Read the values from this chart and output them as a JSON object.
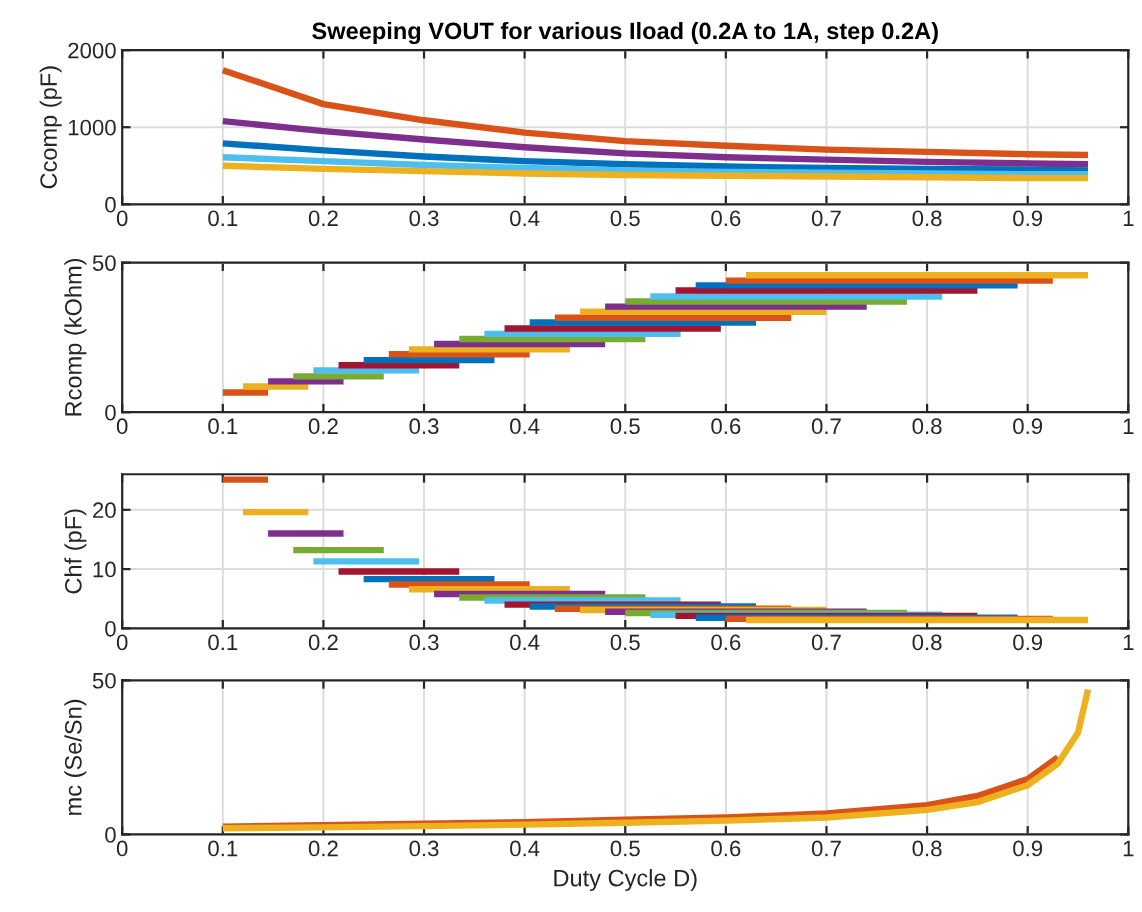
{
  "chart_data": [
    {
      "type": "line",
      "title": "Sweeping VOUT for various Iload (0.2A to 1A, step 0.2A)",
      "ylabel": "Ccomp (pF)",
      "xlim": [
        0,
        1
      ],
      "xticks": [
        0,
        0.1,
        0.2,
        0.3,
        0.4,
        0.5,
        0.6,
        0.7,
        0.8,
        0.9,
        1
      ],
      "ylim": [
        0,
        2000
      ],
      "yticks": [
        0,
        1000,
        2000
      ],
      "grid": true,
      "legend": false,
      "series": [
        {
          "color": "#d95319",
          "x": [
            0.1,
            0.2,
            0.3,
            0.4,
            0.5,
            0.6,
            0.7,
            0.8,
            0.9,
            0.96
          ],
          "values": [
            1740,
            1300,
            1090,
            930,
            820,
            760,
            710,
            680,
            650,
            640
          ]
        },
        {
          "color": "#7e2f8e",
          "x": [
            0.1,
            0.2,
            0.3,
            0.4,
            0.5,
            0.6,
            0.7,
            0.8,
            0.9,
            0.96
          ],
          "values": [
            1080,
            950,
            840,
            740,
            660,
            610,
            580,
            550,
            530,
            520
          ]
        },
        {
          "color": "#0072bd",
          "x": [
            0.1,
            0.2,
            0.3,
            0.4,
            0.5,
            0.6,
            0.7,
            0.8,
            0.9,
            0.96
          ],
          "values": [
            790,
            700,
            620,
            560,
            520,
            490,
            470,
            460,
            450,
            440
          ]
        },
        {
          "color": "#4dbeee",
          "x": [
            0.1,
            0.2,
            0.3,
            0.4,
            0.5,
            0.6,
            0.7,
            0.8,
            0.9,
            0.96
          ],
          "values": [
            610,
            560,
            510,
            470,
            440,
            420,
            410,
            400,
            390,
            390
          ]
        },
        {
          "color": "#edb120",
          "x": [
            0.1,
            0.2,
            0.3,
            0.4,
            0.5,
            0.6,
            0.7,
            0.8,
            0.9,
            0.96
          ],
          "values": [
            500,
            460,
            430,
            400,
            380,
            370,
            360,
            350,
            340,
            340
          ]
        }
      ]
    },
    {
      "type": "line",
      "ylabel": "Rcomp (kOhm)",
      "xlim": [
        0,
        1
      ],
      "xticks": [
        0,
        0.1,
        0.2,
        0.3,
        0.4,
        0.5,
        0.6,
        0.7,
        0.8,
        0.9,
        1
      ],
      "ylim": [
        0,
        50
      ],
      "yticks": [
        0,
        50
      ],
      "grid": true,
      "legend": false,
      "series": [
        {
          "color": "#d95319",
          "x": [
            0.1,
            0.145
          ],
          "values": [
            6.6,
            6.6
          ]
        },
        {
          "color": "#edb120",
          "x": [
            0.12,
            0.185
          ],
          "values": [
            8.6,
            8.6
          ]
        },
        {
          "color": "#7e2f8e",
          "x": [
            0.145,
            0.22
          ],
          "values": [
            10.3,
            10.3
          ]
        },
        {
          "color": "#77ac30",
          "x": [
            0.17,
            0.26
          ],
          "values": [
            12,
            12
          ]
        },
        {
          "color": "#4dbeee",
          "x": [
            0.19,
            0.295
          ],
          "values": [
            14,
            14
          ]
        },
        {
          "color": "#a2142f",
          "x": [
            0.215,
            0.335
          ],
          "values": [
            15.7,
            15.7
          ]
        },
        {
          "color": "#0072bd",
          "x": [
            0.24,
            0.37
          ],
          "values": [
            17.4,
            17.4
          ]
        },
        {
          "color": "#d95319",
          "x": [
            0.265,
            0.405
          ],
          "values": [
            19.4,
            19.4
          ]
        },
        {
          "color": "#edb120",
          "x": [
            0.285,
            0.445
          ],
          "values": [
            21,
            21
          ]
        },
        {
          "color": "#7e2f8e",
          "x": [
            0.31,
            0.48
          ],
          "values": [
            22.8,
            22.8
          ]
        },
        {
          "color": "#77ac30",
          "x": [
            0.335,
            0.52
          ],
          "values": [
            24.5,
            24.5
          ]
        },
        {
          "color": "#4dbeee",
          "x": [
            0.36,
            0.555
          ],
          "values": [
            26.2,
            26.2
          ]
        },
        {
          "color": "#a2142f",
          "x": [
            0.38,
            0.595
          ],
          "values": [
            28,
            28
          ]
        },
        {
          "color": "#0072bd",
          "x": [
            0.405,
            0.63
          ],
          "values": [
            30,
            30
          ]
        },
        {
          "color": "#d95319",
          "x": [
            0.43,
            0.665
          ],
          "values": [
            31.6,
            31.6
          ]
        },
        {
          "color": "#edb120",
          "x": [
            0.455,
            0.7
          ],
          "values": [
            33.6,
            33.6
          ]
        },
        {
          "color": "#7e2f8e",
          "x": [
            0.48,
            0.74
          ],
          "values": [
            35.3,
            35.3
          ]
        },
        {
          "color": "#77ac30",
          "x": [
            0.5,
            0.78
          ],
          "values": [
            37,
            37
          ]
        },
        {
          "color": "#4dbeee",
          "x": [
            0.525,
            0.815
          ],
          "values": [
            38.7,
            38.7
          ]
        },
        {
          "color": "#a2142f",
          "x": [
            0.55,
            0.85
          ],
          "values": [
            40.7,
            40.7
          ]
        },
        {
          "color": "#0072bd",
          "x": [
            0.57,
            0.89
          ],
          "values": [
            42.4,
            42.4
          ]
        },
        {
          "color": "#d95319",
          "x": [
            0.6,
            0.925
          ],
          "values": [
            44,
            44
          ]
        },
        {
          "color": "#edb120",
          "x": [
            0.62,
            0.96
          ],
          "values": [
            45.8,
            45.8
          ]
        }
      ]
    },
    {
      "type": "line",
      "ylabel": "Chf (pF)",
      "xlim": [
        0,
        1
      ],
      "xticks": [
        0,
        0.1,
        0.2,
        0.3,
        0.4,
        0.5,
        0.6,
        0.7,
        0.8,
        0.9,
        1
      ],
      "ylim": [
        0,
        26
      ],
      "yticks": [
        0,
        10,
        20
      ],
      "grid": true,
      "legend": false,
      "series": [
        {
          "color": "#d95319",
          "x": [
            0.1,
            0.145
          ],
          "values": [
            25.1,
            25.1
          ]
        },
        {
          "color": "#edb120",
          "x": [
            0.12,
            0.185
          ],
          "values": [
            19.6,
            19.6
          ]
        },
        {
          "color": "#7e2f8e",
          "x": [
            0.145,
            0.22
          ],
          "values": [
            16,
            16
          ]
        },
        {
          "color": "#77ac30",
          "x": [
            0.17,
            0.26
          ],
          "values": [
            13.2,
            13.2
          ]
        },
        {
          "color": "#4dbeee",
          "x": [
            0.19,
            0.295
          ],
          "values": [
            11.3,
            11.3
          ]
        },
        {
          "color": "#a2142f",
          "x": [
            0.215,
            0.335
          ],
          "values": [
            9.6,
            9.6
          ]
        },
        {
          "color": "#0072bd",
          "x": [
            0.24,
            0.37
          ],
          "values": [
            8.3,
            8.3
          ]
        },
        {
          "color": "#d95319",
          "x": [
            0.265,
            0.405
          ],
          "values": [
            7.4,
            7.4
          ]
        },
        {
          "color": "#edb120",
          "x": [
            0.285,
            0.445
          ],
          "values": [
            6.6,
            6.6
          ]
        },
        {
          "color": "#7e2f8e",
          "x": [
            0.31,
            0.48
          ],
          "values": [
            5.8,
            5.8
          ]
        },
        {
          "color": "#77ac30",
          "x": [
            0.335,
            0.52
          ],
          "values": [
            5.2,
            5.2
          ]
        },
        {
          "color": "#4dbeee",
          "x": [
            0.36,
            0.555
          ],
          "values": [
            4.7,
            4.7
          ]
        },
        {
          "color": "#a2142f",
          "x": [
            0.38,
            0.595
          ],
          "values": [
            4,
            4
          ]
        },
        {
          "color": "#0072bd",
          "x": [
            0.405,
            0.63
          ],
          "values": [
            3.7,
            3.7
          ]
        },
        {
          "color": "#d95319",
          "x": [
            0.43,
            0.665
          ],
          "values": [
            3.3,
            3.3
          ]
        },
        {
          "color": "#edb120",
          "x": [
            0.455,
            0.7
          ],
          "values": [
            3.1,
            3.1
          ]
        },
        {
          "color": "#7e2f8e",
          "x": [
            0.48,
            0.74
          ],
          "values": [
            2.8,
            2.8
          ]
        },
        {
          "color": "#77ac30",
          "x": [
            0.5,
            0.78
          ],
          "values": [
            2.6,
            2.6
          ]
        },
        {
          "color": "#4dbeee",
          "x": [
            0.525,
            0.815
          ],
          "values": [
            2.3,
            2.3
          ]
        },
        {
          "color": "#a2142f",
          "x": [
            0.55,
            0.85
          ],
          "values": [
            2.1,
            2.1
          ]
        },
        {
          "color": "#0072bd",
          "x": [
            0.57,
            0.89
          ],
          "values": [
            1.8,
            1.8
          ]
        },
        {
          "color": "#d95319",
          "x": [
            0.6,
            0.925
          ],
          "values": [
            1.6,
            1.6
          ]
        },
        {
          "color": "#edb120",
          "x": [
            0.62,
            0.96
          ],
          "values": [
            1.4,
            1.4
          ]
        }
      ]
    },
    {
      "type": "line",
      "ylabel": "mc (Se/Sn)",
      "xlabel": "Duty Cycle D)",
      "xlim": [
        0,
        1
      ],
      "xticks": [
        0,
        0.1,
        0.2,
        0.3,
        0.4,
        0.5,
        0.6,
        0.7,
        0.8,
        0.9,
        1
      ],
      "ylim": [
        0,
        50
      ],
      "yticks": [
        0,
        50
      ],
      "grid": true,
      "legend": false,
      "series": [
        {
          "color": "#d95319",
          "x": [
            0.1,
            0.2,
            0.3,
            0.4,
            0.5,
            0.6,
            0.7,
            0.8,
            0.85,
            0.9,
            0.93
          ],
          "values": [
            2.5,
            3,
            3.5,
            4,
            4.8,
            5.5,
            6.8,
            9.5,
            12.5,
            18,
            25
          ]
        },
        {
          "color": "#edb120",
          "x": [
            0.1,
            0.2,
            0.3,
            0.4,
            0.5,
            0.6,
            0.7,
            0.8,
            0.85,
            0.9,
            0.93,
            0.95,
            0.96
          ],
          "values": [
            2,
            2.3,
            2.7,
            3.2,
            3.8,
            4.5,
            5.5,
            8,
            10.5,
            16,
            23,
            33,
            47
          ]
        }
      ]
    }
  ]
}
